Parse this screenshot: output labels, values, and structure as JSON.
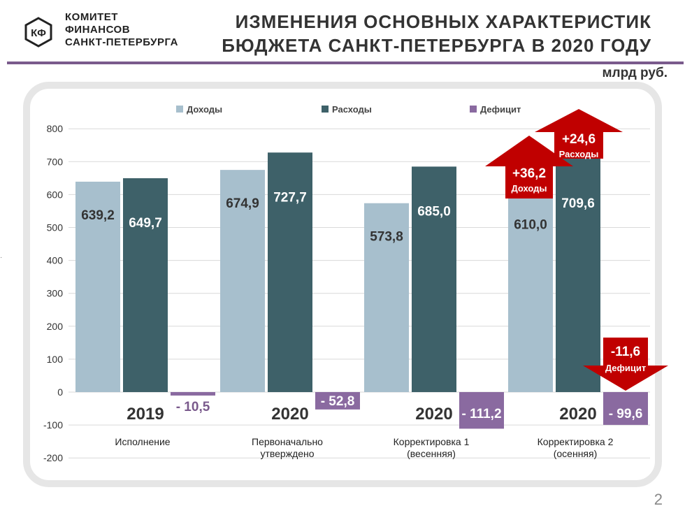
{
  "header": {
    "logo_text": "КФ",
    "org_line1": "КОМИТЕТ",
    "org_line2": "ФИНАНСОВ",
    "org_line3": "САНКТ-ПЕТЕРБУРГА",
    "title_line1": "ИЗМЕНЕНИЯ ОСНОВНЫХ ХАРАКТЕРИСТИК",
    "title_line2": "БЮДЖЕТА САНКТ-ПЕТЕРБУРГА В 2020 ГОДУ",
    "accent_color": "#7a5a8c"
  },
  "unit": "млрд руб.",
  "page_number": "2",
  "chart_data": {
    "type": "bar",
    "ylim": [
      -200,
      800
    ],
    "yticks": [
      800,
      700,
      600,
      500,
      400,
      300,
      200,
      100,
      0,
      -100,
      -200
    ],
    "grid": true,
    "legend_position": "top",
    "categories": [
      "Исполнение",
      "Первоначально утверждено",
      "Корректировка 1 (весенняя)",
      "Корректировка 2 (осенняя)"
    ],
    "category_lines": [
      [
        "Исполнение"
      ],
      [
        "Первоначально",
        "утверждено"
      ],
      [
        "Корректировка 1",
        "(весенняя)"
      ],
      [
        "Корректировка 2",
        "(осенняя)"
      ]
    ],
    "years": [
      "2019",
      "2020",
      "2020",
      "2020"
    ],
    "series": [
      {
        "name": "Доходы",
        "color": "#a7bfcd",
        "values": [
          639.2,
          674.9,
          573.8,
          610.0
        ],
        "labels": [
          "639,2",
          "674,9",
          "573,8",
          "610,0"
        ]
      },
      {
        "name": "Расходы",
        "color": "#3e6169",
        "values": [
          649.7,
          727.7,
          685.0,
          709.6
        ],
        "labels": [
          "649,7",
          "727,7",
          "685,0",
          "709,6"
        ]
      },
      {
        "name": "Дефицит",
        "color": "#8a6aa0",
        "values": [
          -10.5,
          -52.8,
          -111.2,
          -99.6
        ],
        "labels": [
          "- 10,5",
          "- 52,8",
          "- 111,2",
          "- 99,6"
        ]
      }
    ],
    "annotations": [
      {
        "value": "+36,2",
        "label": "Доходы",
        "direction": "up",
        "color": "#c00000"
      },
      {
        "value": "+24,6",
        "label": "Расходы",
        "direction": "up",
        "color": "#c00000"
      },
      {
        "value": "-11,6",
        "label": "Дефицит",
        "direction": "down",
        "color": "#c00000"
      }
    ]
  }
}
